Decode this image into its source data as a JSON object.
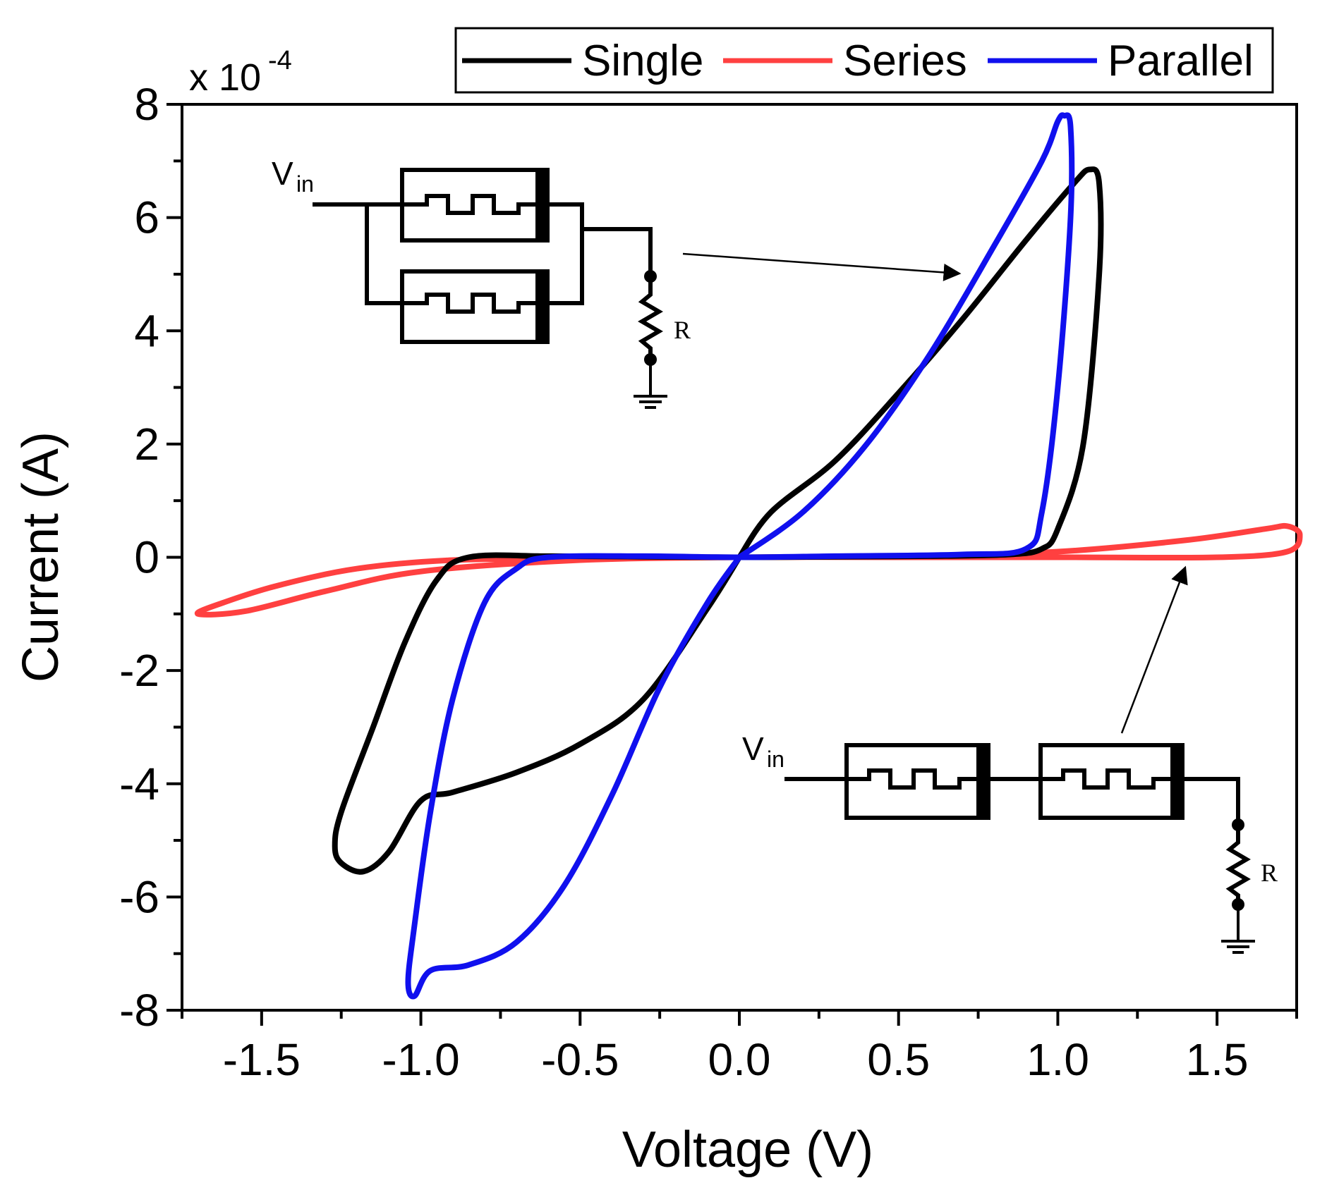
{
  "chart_data": {
    "type": "line",
    "title": "",
    "xlabel": "Voltage (V)",
    "ylabel": "Current (A)",
    "y_multiplier": "x 10",
    "y_multiplier_exponent": "-4",
    "xlim": [
      -1.75,
      1.75
    ],
    "ylim": [
      -8,
      8
    ],
    "x_ticks": [
      -1.5,
      -1.0,
      -0.5,
      0.0,
      0.5,
      1.0,
      1.5
    ],
    "x_tick_labels": [
      "-1.5",
      "-1.0",
      "-0.5",
      "0.0",
      "0.5",
      "1.0",
      "1.5"
    ],
    "y_ticks": [
      -8,
      -6,
      -4,
      -2,
      0,
      2,
      4,
      6,
      8
    ],
    "y_tick_labels": [
      "-8",
      "-6",
      "-4",
      "-2",
      "0",
      "2",
      "4",
      "6",
      "8"
    ],
    "legend": {
      "position": "top-right",
      "entries": [
        "Single",
        "Series",
        "Parallel"
      ]
    },
    "series": [
      {
        "name": "Single",
        "color": "#000000",
        "points": [
          [
            0,
            0
          ],
          [
            0.1,
            0.8
          ],
          [
            0.3,
            1.7
          ],
          [
            0.5,
            2.9
          ],
          [
            0.7,
            4.2
          ],
          [
            0.9,
            5.6
          ],
          [
            1.05,
            6.6
          ],
          [
            1.1,
            6.85
          ],
          [
            1.13,
            6.6
          ],
          [
            1.13,
            5.0
          ],
          [
            1.08,
            2.0
          ],
          [
            1.0,
            0.5
          ],
          [
            0.95,
            0.15
          ],
          [
            0.85,
            0.05
          ],
          [
            0.6,
            0.02
          ],
          [
            0.3,
            0.01
          ],
          [
            0.0,
            0.0
          ],
          [
            -0.3,
            0.01
          ],
          [
            -0.6,
            0.02
          ],
          [
            -0.85,
            0.0
          ],
          [
            -0.95,
            -0.4
          ],
          [
            -1.05,
            -1.5
          ],
          [
            -1.15,
            -3.0
          ],
          [
            -1.25,
            -4.5
          ],
          [
            -1.27,
            -5.1
          ],
          [
            -1.25,
            -5.4
          ],
          [
            -1.18,
            -5.55
          ],
          [
            -1.1,
            -5.2
          ],
          [
            -1.0,
            -4.3
          ],
          [
            -0.9,
            -4.15
          ],
          [
            -0.7,
            -3.8
          ],
          [
            -0.5,
            -3.3
          ],
          [
            -0.3,
            -2.5
          ],
          [
            -0.1,
            -0.9
          ],
          [
            0,
            0
          ]
        ]
      },
      {
        "name": "Series",
        "color": "#ff4040",
        "points": [
          [
            0,
            0
          ],
          [
            0.5,
            0.02
          ],
          [
            1.0,
            0.1
          ],
          [
            1.4,
            0.3
          ],
          [
            1.65,
            0.5
          ],
          [
            1.72,
            0.55
          ],
          [
            1.76,
            0.4
          ],
          [
            1.72,
            0.1
          ],
          [
            1.5,
            0.0
          ],
          [
            1.0,
            0.0
          ],
          [
            0.5,
            0.0
          ],
          [
            0,
            0
          ],
          [
            -0.5,
            -0.05
          ],
          [
            -1.0,
            -0.25
          ],
          [
            -1.3,
            -0.6
          ],
          [
            -1.55,
            -0.95
          ],
          [
            -1.7,
            -1.0
          ],
          [
            -1.62,
            -0.8
          ],
          [
            -1.45,
            -0.5
          ],
          [
            -1.2,
            -0.2
          ],
          [
            -0.9,
            -0.05
          ],
          [
            -0.5,
            -0.02
          ],
          [
            0,
            0
          ]
        ]
      },
      {
        "name": "Parallel",
        "color": "#1010ee",
        "points": [
          [
            0,
            0
          ],
          [
            0.2,
            0.8
          ],
          [
            0.4,
            2.0
          ],
          [
            0.6,
            3.6
          ],
          [
            0.8,
            5.5
          ],
          [
            0.95,
            7.0
          ],
          [
            1.0,
            7.7
          ],
          [
            1.02,
            7.8
          ],
          [
            1.04,
            7.6
          ],
          [
            1.04,
            6.0
          ],
          [
            1.0,
            3.0
          ],
          [
            0.95,
            0.8
          ],
          [
            0.9,
            0.15
          ],
          [
            0.7,
            0.05
          ],
          [
            0.3,
            0.02
          ],
          [
            0,
            0
          ],
          [
            -0.3,
            0.02
          ],
          [
            -0.6,
            0.0
          ],
          [
            -0.7,
            -0.2
          ],
          [
            -0.8,
            -0.8
          ],
          [
            -0.9,
            -2.5
          ],
          [
            -0.97,
            -4.5
          ],
          [
            -1.02,
            -6.5
          ],
          [
            -1.04,
            -7.5
          ],
          [
            -1.02,
            -7.75
          ],
          [
            -0.97,
            -7.3
          ],
          [
            -0.85,
            -7.2
          ],
          [
            -0.7,
            -6.8
          ],
          [
            -0.55,
            -5.8
          ],
          [
            -0.4,
            -4.2
          ],
          [
            -0.25,
            -2.3
          ],
          [
            -0.1,
            -0.8
          ],
          [
            0,
            0
          ]
        ]
      }
    ],
    "annotations": [
      {
        "name": "parallel-circuit",
        "vin_label": "V",
        "vin_subscript": "in",
        "resistor_label": "R",
        "points_to_series": "Parallel"
      },
      {
        "name": "series-circuit",
        "vin_label": "V",
        "vin_subscript": "in",
        "resistor_label": "R",
        "points_to_series": "Series"
      }
    ]
  }
}
